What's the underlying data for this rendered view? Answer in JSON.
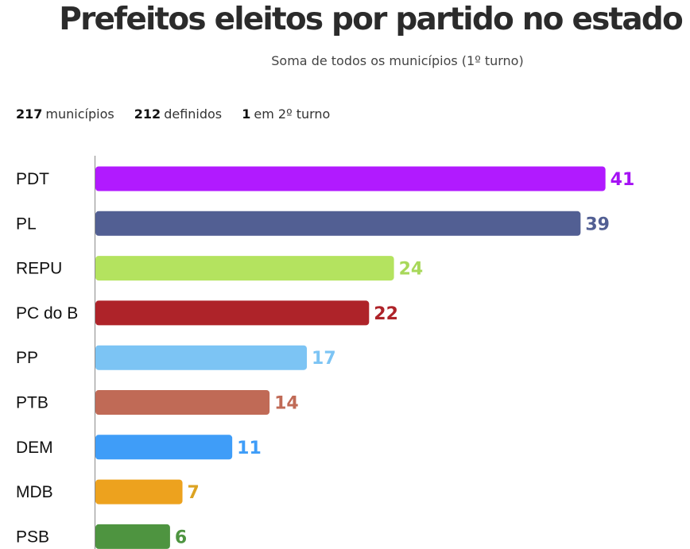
{
  "header": {
    "title": "Prefeitos eleitos por partido no estado",
    "subtitle": "Soma de todos os municípios (1º turno)"
  },
  "stats": [
    {
      "value": "217",
      "label": "municípios"
    },
    {
      "value": "212",
      "label": "definidos"
    },
    {
      "value": "1",
      "label": "em 2º turno"
    }
  ],
  "chart_data": {
    "type": "bar",
    "orientation": "horizontal",
    "title": "Prefeitos eleitos por partido no estado",
    "subtitle": "Soma de todos os municípios (1º turno)",
    "xlabel": "",
    "ylabel": "",
    "grid": false,
    "categories": [
      "PDT",
      "PL",
      "REPU",
      "PC do B",
      "PP",
      "PTB",
      "DEM",
      "MDB",
      "PSB"
    ],
    "values": [
      41,
      39,
      24,
      22,
      17,
      14,
      11,
      7,
      6
    ],
    "colors": [
      "#b11aff",
      "#525f93",
      "#b4e35f",
      "#ae2329",
      "#7cc4f4",
      "#c06a56",
      "#3f9df8",
      "#eda21e",
      "#4e9440"
    ],
    "value_label_colors": [
      "#a512f4",
      "#525f93",
      "#a8d85a",
      "#ae2329",
      "#7cc4f4",
      "#c06a56",
      "#3f9df8",
      "#dca322",
      "#4e9440"
    ]
  }
}
